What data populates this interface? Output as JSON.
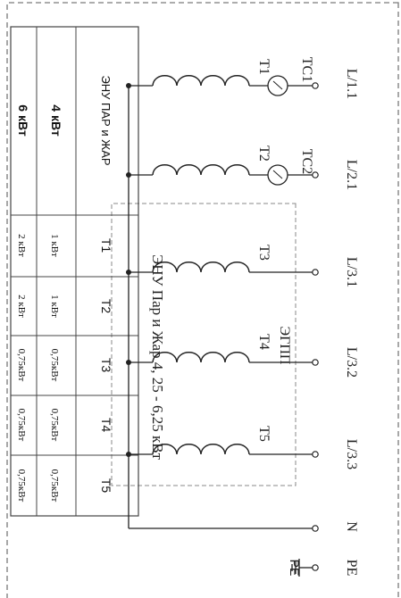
{
  "title": "ЭНУ Пар и Жар 4, 25 - 6,25 кВт",
  "terminals": [
    "L/1.1",
    "L/2.1",
    "L/3.1",
    "L/3.2",
    "L/3.3",
    "N",
    "PE"
  ],
  "pe_symbol_label": "PE",
  "heaters": [
    "T1",
    "T2",
    "T3",
    "T4",
    "T5"
  ],
  "thermostats": [
    "TC1",
    "TC2"
  ],
  "group_label": "ЭГПП",
  "table": {
    "header": [
      "ЭНУ ПАР и ЖАР",
      "T1",
      "T2",
      "T3",
      "T4",
      "T5"
    ],
    "rows": [
      [
        "4 кВт",
        "1 кВт",
        "1 кВт",
        "0,75кВт",
        "0,75кВт",
        "0,75кВт"
      ],
      [
        "6 кВт",
        "2 кВт",
        "2 кВт",
        "0,75кВт",
        "0,75кВт",
        "0,75кВт"
      ]
    ]
  }
}
